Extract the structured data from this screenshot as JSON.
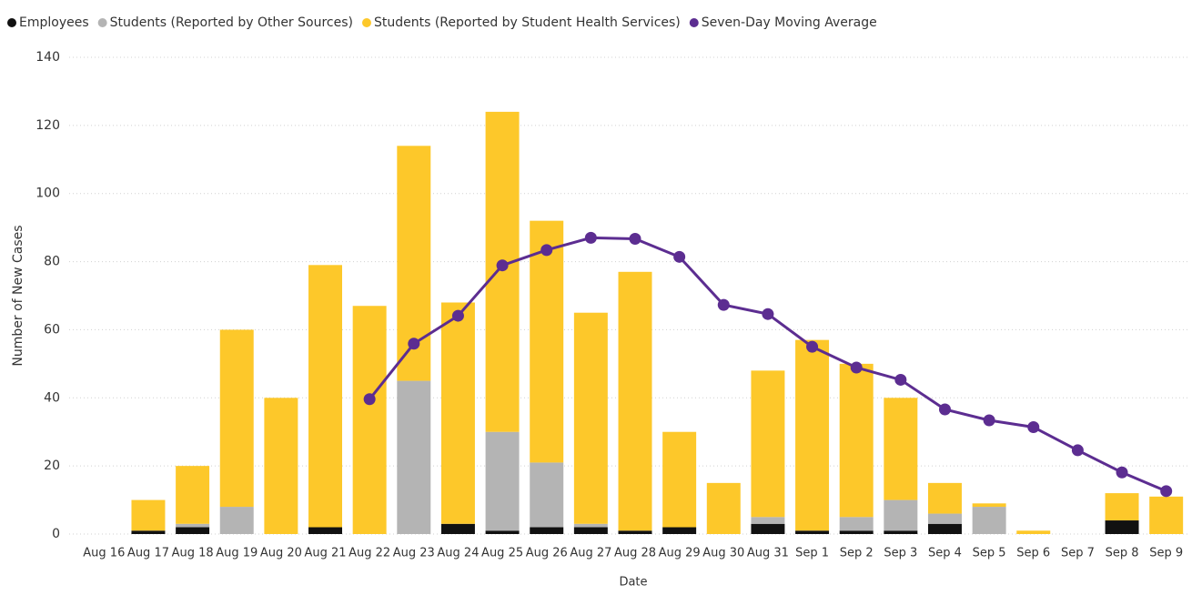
{
  "chart_data": {
    "type": "bar",
    "stacked": true,
    "x_label": "Date",
    "y_label": "Number of New Cases",
    "categories": [
      "Aug 16",
      "Aug 17",
      "Aug 18",
      "Aug 19",
      "Aug 20",
      "Aug 21",
      "Aug 22",
      "Aug 23",
      "Aug 24",
      "Aug 25",
      "Aug 26",
      "Aug 27",
      "Aug 28",
      "Aug 29",
      "Aug 30",
      "Aug 31",
      "Sep 1",
      "Sep 2",
      "Sep 3",
      "Sep 4",
      "Sep 5",
      "Sep 6",
      "Sep 7",
      "Sep 8",
      "Sep 9"
    ],
    "series": [
      {
        "name": "Employees",
        "type": "bar",
        "color": "#111111",
        "values": [
          0,
          1,
          2,
          0,
          0,
          2,
          0,
          0,
          3,
          1,
          2,
          2,
          1,
          2,
          0,
          3,
          1,
          1,
          1,
          3,
          0,
          0,
          0,
          4,
          0
        ]
      },
      {
        "name": "Students (Reported by Other Sources)",
        "type": "bar",
        "color": "#b4b4b4",
        "values": [
          0,
          0,
          1,
          8,
          0,
          0,
          0,
          45,
          0,
          29,
          19,
          1,
          0,
          0,
          0,
          2,
          0,
          4,
          9,
          3,
          8,
          0,
          0,
          0,
          0
        ]
      },
      {
        "name": "Students (Reported by Student Health Services)",
        "type": "bar",
        "color": "#fdc82a",
        "values": [
          0,
          9,
          17,
          52,
          40,
          77,
          67,
          69,
          65,
          94,
          71,
          62,
          76,
          28,
          15,
          43,
          56,
          45,
          30,
          9,
          1,
          1,
          0,
          8,
          11
        ]
      },
      {
        "name": "Seven-Day Moving Average",
        "type": "line",
        "color": "#5c2d91",
        "values": [
          null,
          null,
          null,
          null,
          null,
          null,
          39.6,
          55.9,
          64.1,
          78.9,
          83.4,
          87,
          86.7,
          81.4,
          67.3,
          64.6,
          55,
          48.9,
          45.3,
          36.6,
          33.4,
          31.4,
          24.6,
          18.1,
          12.6
        ]
      }
    ],
    "ylim": [
      0,
      140
    ],
    "yticks": [
      0,
      20,
      40,
      60,
      80,
      100,
      120,
      140
    ],
    "grid": true,
    "legend": "top-left"
  }
}
